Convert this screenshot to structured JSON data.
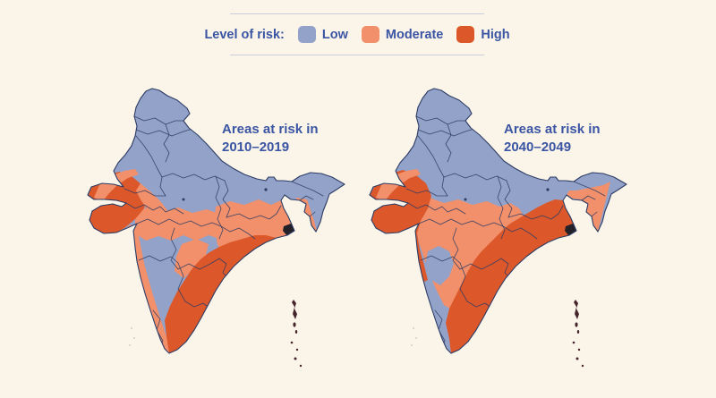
{
  "colors": {
    "background": "#FBF4E9",
    "text": "#3A55A3",
    "rule": "#C9CEDA",
    "low": "#93A2C9",
    "moderate": "#F2906B",
    "high": "#DC582A",
    "border": "#2C3C64",
    "dark": "#232028",
    "islands": "#46242C",
    "faint_islands": "#D9D5CB"
  },
  "legend": {
    "label": "Level of risk:",
    "items": [
      {
        "id": "low",
        "label": "Low"
      },
      {
        "id": "moderate",
        "label": "Moderate"
      },
      {
        "id": "high",
        "label": "High"
      }
    ]
  },
  "maps": [
    {
      "id": "2010-2019",
      "title_line1": "Areas at risk in",
      "title_line2": "2010–2019"
    },
    {
      "id": "2040-2049",
      "title_line1": "Areas at risk in",
      "title_line2": "2040–2049"
    }
  ]
}
